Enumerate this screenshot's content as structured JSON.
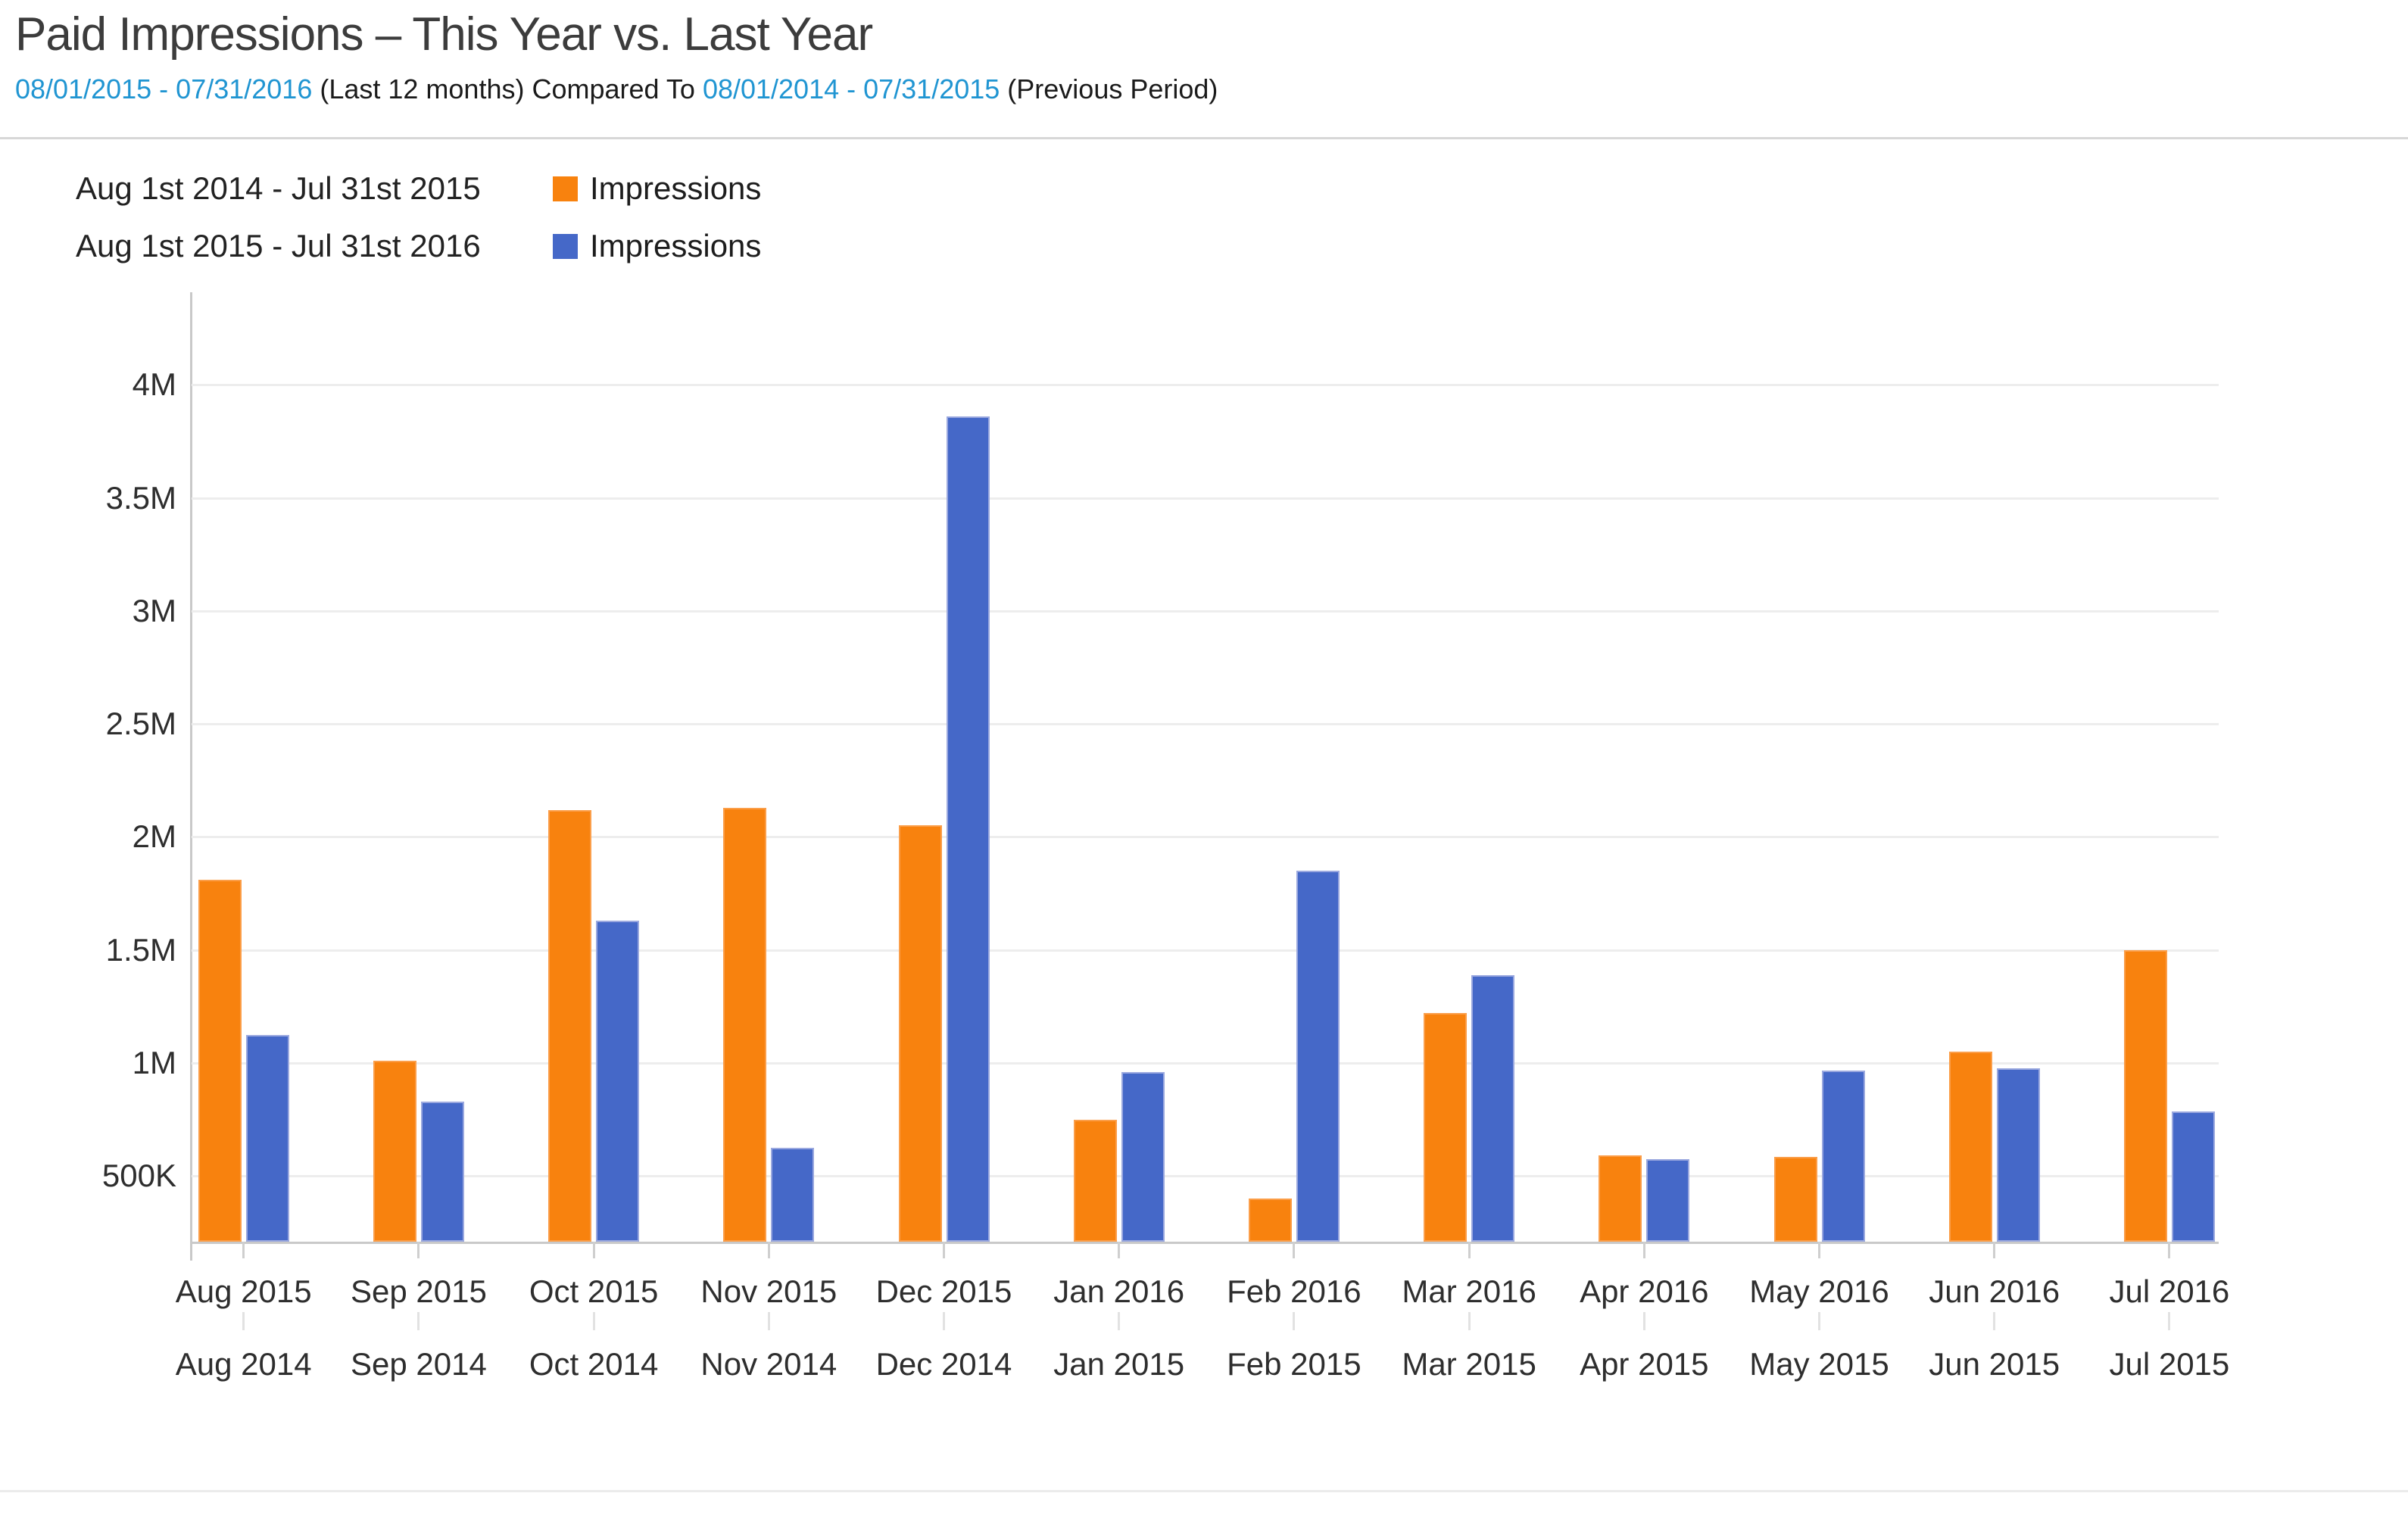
{
  "header": {
    "title": "Paid Impressions – This Year vs. Last Year",
    "subtitle": {
      "range_current": "08/01/2015 - 07/31/2016",
      "middle_text": " (Last 12 months) Compared To ",
      "range_previous": "08/01/2014 - 07/31/2015",
      "end_text": " (Previous Period)"
    }
  },
  "legend": {
    "rows": [
      {
        "period": "Aug 1st 2014 - Jul 31st 2015",
        "series": "Impressions",
        "color": "#f8820e"
      },
      {
        "period": "Aug 1st 2015 - Jul 31st 2016",
        "series": "Impressions",
        "color": "#4568c8"
      }
    ]
  },
  "chart_data": {
    "type": "bar",
    "title": "Paid Impressions – This Year vs. Last Year",
    "categories_row1": [
      "Aug 2015",
      "Sep 2015",
      "Oct 2015",
      "Nov 2015",
      "Dec 2015",
      "Jan 2016",
      "Feb 2016",
      "Mar 2016",
      "Apr 2016",
      "May 2016",
      "Jun 2016",
      "Jul 2016"
    ],
    "categories_row2": [
      "Aug 2014",
      "Sep 2014",
      "Oct 2014",
      "Nov 2014",
      "Dec 2014",
      "Jan 2015",
      "Feb 2015",
      "Mar 2015",
      "Apr 2015",
      "May 2015",
      "Jun 2015",
      "Jul 2015"
    ],
    "series": [
      {
        "name": "Impressions",
        "period": "Aug 1st 2014 - Jul 31st 2015",
        "color": "#f8820e",
        "values_millions": [
          1.81,
          1.01,
          2.12,
          2.13,
          2.05,
          0.75,
          0.4,
          1.22,
          0.59,
          0.585,
          1.05,
          1.5
        ]
      },
      {
        "name": "Impressions",
        "period": "Aug 1st 2015 - Jul 31st 2016",
        "color": "#4568c8",
        "values_millions": [
          1.125,
          0.83,
          1.63,
          0.625,
          3.86,
          0.96,
          1.85,
          1.39,
          0.575,
          0.965,
          0.975,
          0.785
        ]
      }
    ],
    "y_axis": {
      "tick_labels": [
        "4M",
        "3.5M",
        "3M",
        "2.5M",
        "2M",
        "1.5M",
        "1M",
        "500K"
      ],
      "tick_values_millions": [
        4,
        3.5,
        3,
        2.5,
        2,
        1.5,
        1,
        0.5
      ],
      "baseline_value_millions": 0.2
    },
    "ylim": [
      0.2,
      4.3
    ],
    "grid": true,
    "legend_position": "top-left"
  }
}
